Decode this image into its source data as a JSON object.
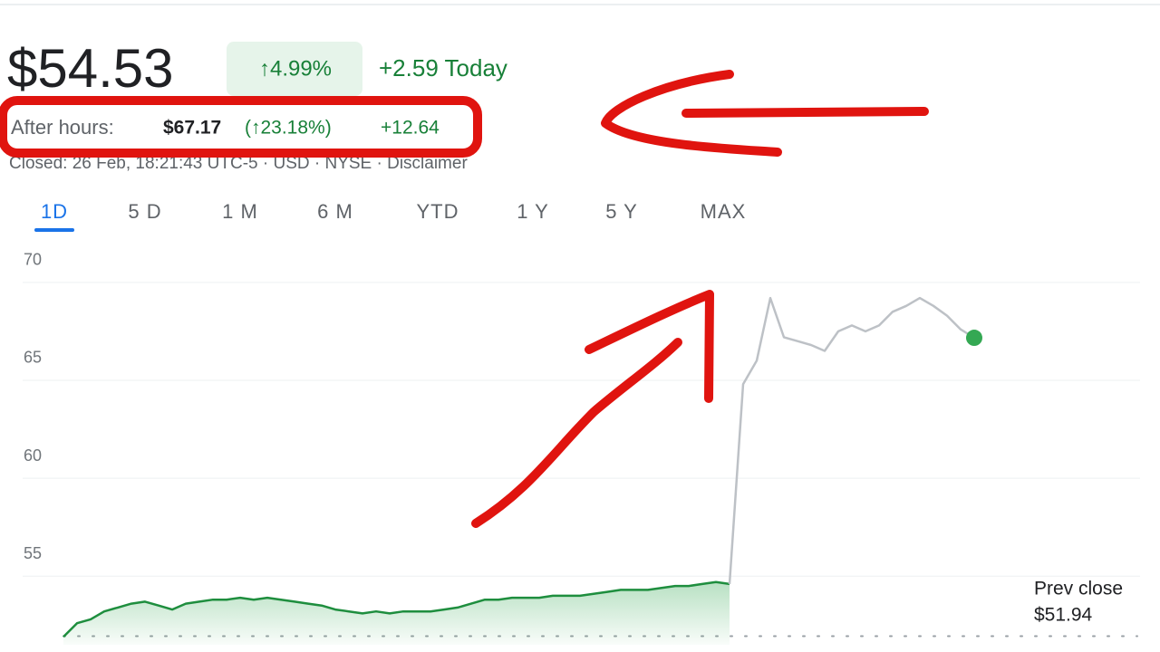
{
  "quote": {
    "price": "$54.53",
    "change_percent": "↑4.99%",
    "change_today": "+2.59 Today",
    "after_hours_label": "After hours:",
    "after_hours_price": "$67.17",
    "after_hours_percent": "(↑23.18%)",
    "after_hours_change": "+12.64",
    "status": "Closed: 26 Feb, 18:21:43 UTC-5 · USD · NYSE · Disclaimer"
  },
  "tabs": [
    {
      "label": "1D",
      "active": true
    },
    {
      "label": "5 D",
      "active": false
    },
    {
      "label": "1 M",
      "active": false
    },
    {
      "label": "6 M",
      "active": false
    },
    {
      "label": "YTD",
      "active": false
    },
    {
      "label": "1 Y",
      "active": false
    },
    {
      "label": "5 Y",
      "active": false
    },
    {
      "label": "MAX",
      "active": false
    }
  ],
  "chart_data": {
    "type": "line",
    "categories": [
      null,
      null,
      null,
      null,
      null,
      null,
      null,
      null,
      null,
      null,
      null,
      null,
      null,
      null,
      null,
      null,
      null,
      null,
      null,
      null,
      null,
      null,
      null,
      null,
      null,
      null,
      null,
      null,
      null,
      null,
      null,
      null,
      null,
      null,
      null,
      null,
      null,
      null,
      null,
      null,
      null,
      null,
      null,
      null,
      null,
      null,
      null,
      null,
      null,
      null,
      null,
      null,
      null,
      null,
      null,
      null,
      null,
      null,
      null,
      null,
      null,
      null,
      null,
      null,
      null,
      null,
      null,
      null,
      null,
      null,
      null,
      null,
      null,
      null,
      null,
      null,
      null,
      null,
      null,
      null
    ],
    "series": [
      {
        "color": "#1e8e3e",
        "area": true,
        "values": [
          51.9,
          52.6,
          52.8,
          53.2,
          53.4,
          53.6,
          53.7,
          53.5,
          53.3,
          53.6,
          53.7,
          53.8,
          53.8,
          53.9,
          53.8,
          53.9,
          53.8,
          53.7,
          53.6,
          53.5,
          53.3,
          53.2,
          53.1,
          53.2,
          53.1,
          53.2,
          53.2,
          53.2,
          53.3,
          53.4,
          53.6,
          53.8,
          53.8,
          53.9,
          53.9,
          53.9,
          54.0,
          54.0,
          54.0,
          54.1,
          54.2,
          54.3,
          54.3,
          54.3,
          54.4,
          54.5,
          54.5,
          54.6,
          54.7,
          54.6,
          null,
          null,
          null,
          null,
          null,
          null,
          null,
          null,
          null,
          null,
          null,
          null,
          null,
          null,
          null,
          null,
          null,
          null,
          null,
          null,
          null,
          null,
          null,
          null,
          null,
          null,
          null,
          null,
          null,
          null
        ]
      },
      {
        "color": "#bdc1c6",
        "area": false,
        "values": [
          null,
          null,
          null,
          null,
          null,
          null,
          null,
          null,
          null,
          null,
          null,
          null,
          null,
          null,
          null,
          null,
          null,
          null,
          null,
          null,
          null,
          null,
          null,
          null,
          null,
          null,
          null,
          null,
          null,
          null,
          null,
          null,
          null,
          null,
          null,
          null,
          null,
          null,
          null,
          null,
          null,
          null,
          null,
          null,
          null,
          null,
          null,
          null,
          null,
          54.6,
          64.8,
          66.0,
          69.2,
          67.2,
          67.0,
          66.8,
          66.5,
          67.5,
          67.8,
          67.5,
          67.8,
          68.5,
          68.8,
          69.2,
          68.8,
          68.3,
          67.6,
          67.17,
          null,
          null,
          null,
          null,
          null,
          null,
          null,
          null,
          null,
          null,
          null,
          null
        ]
      }
    ],
    "last_point_color": "#34a853",
    "reference_line": {
      "label": "Prev close",
      "value": 51.94,
      "value_label": "$51.94"
    },
    "ylim": [
      51.5,
      70.5
    ],
    "yticks": [
      55,
      60,
      65,
      70
    ],
    "grid": true
  }
}
